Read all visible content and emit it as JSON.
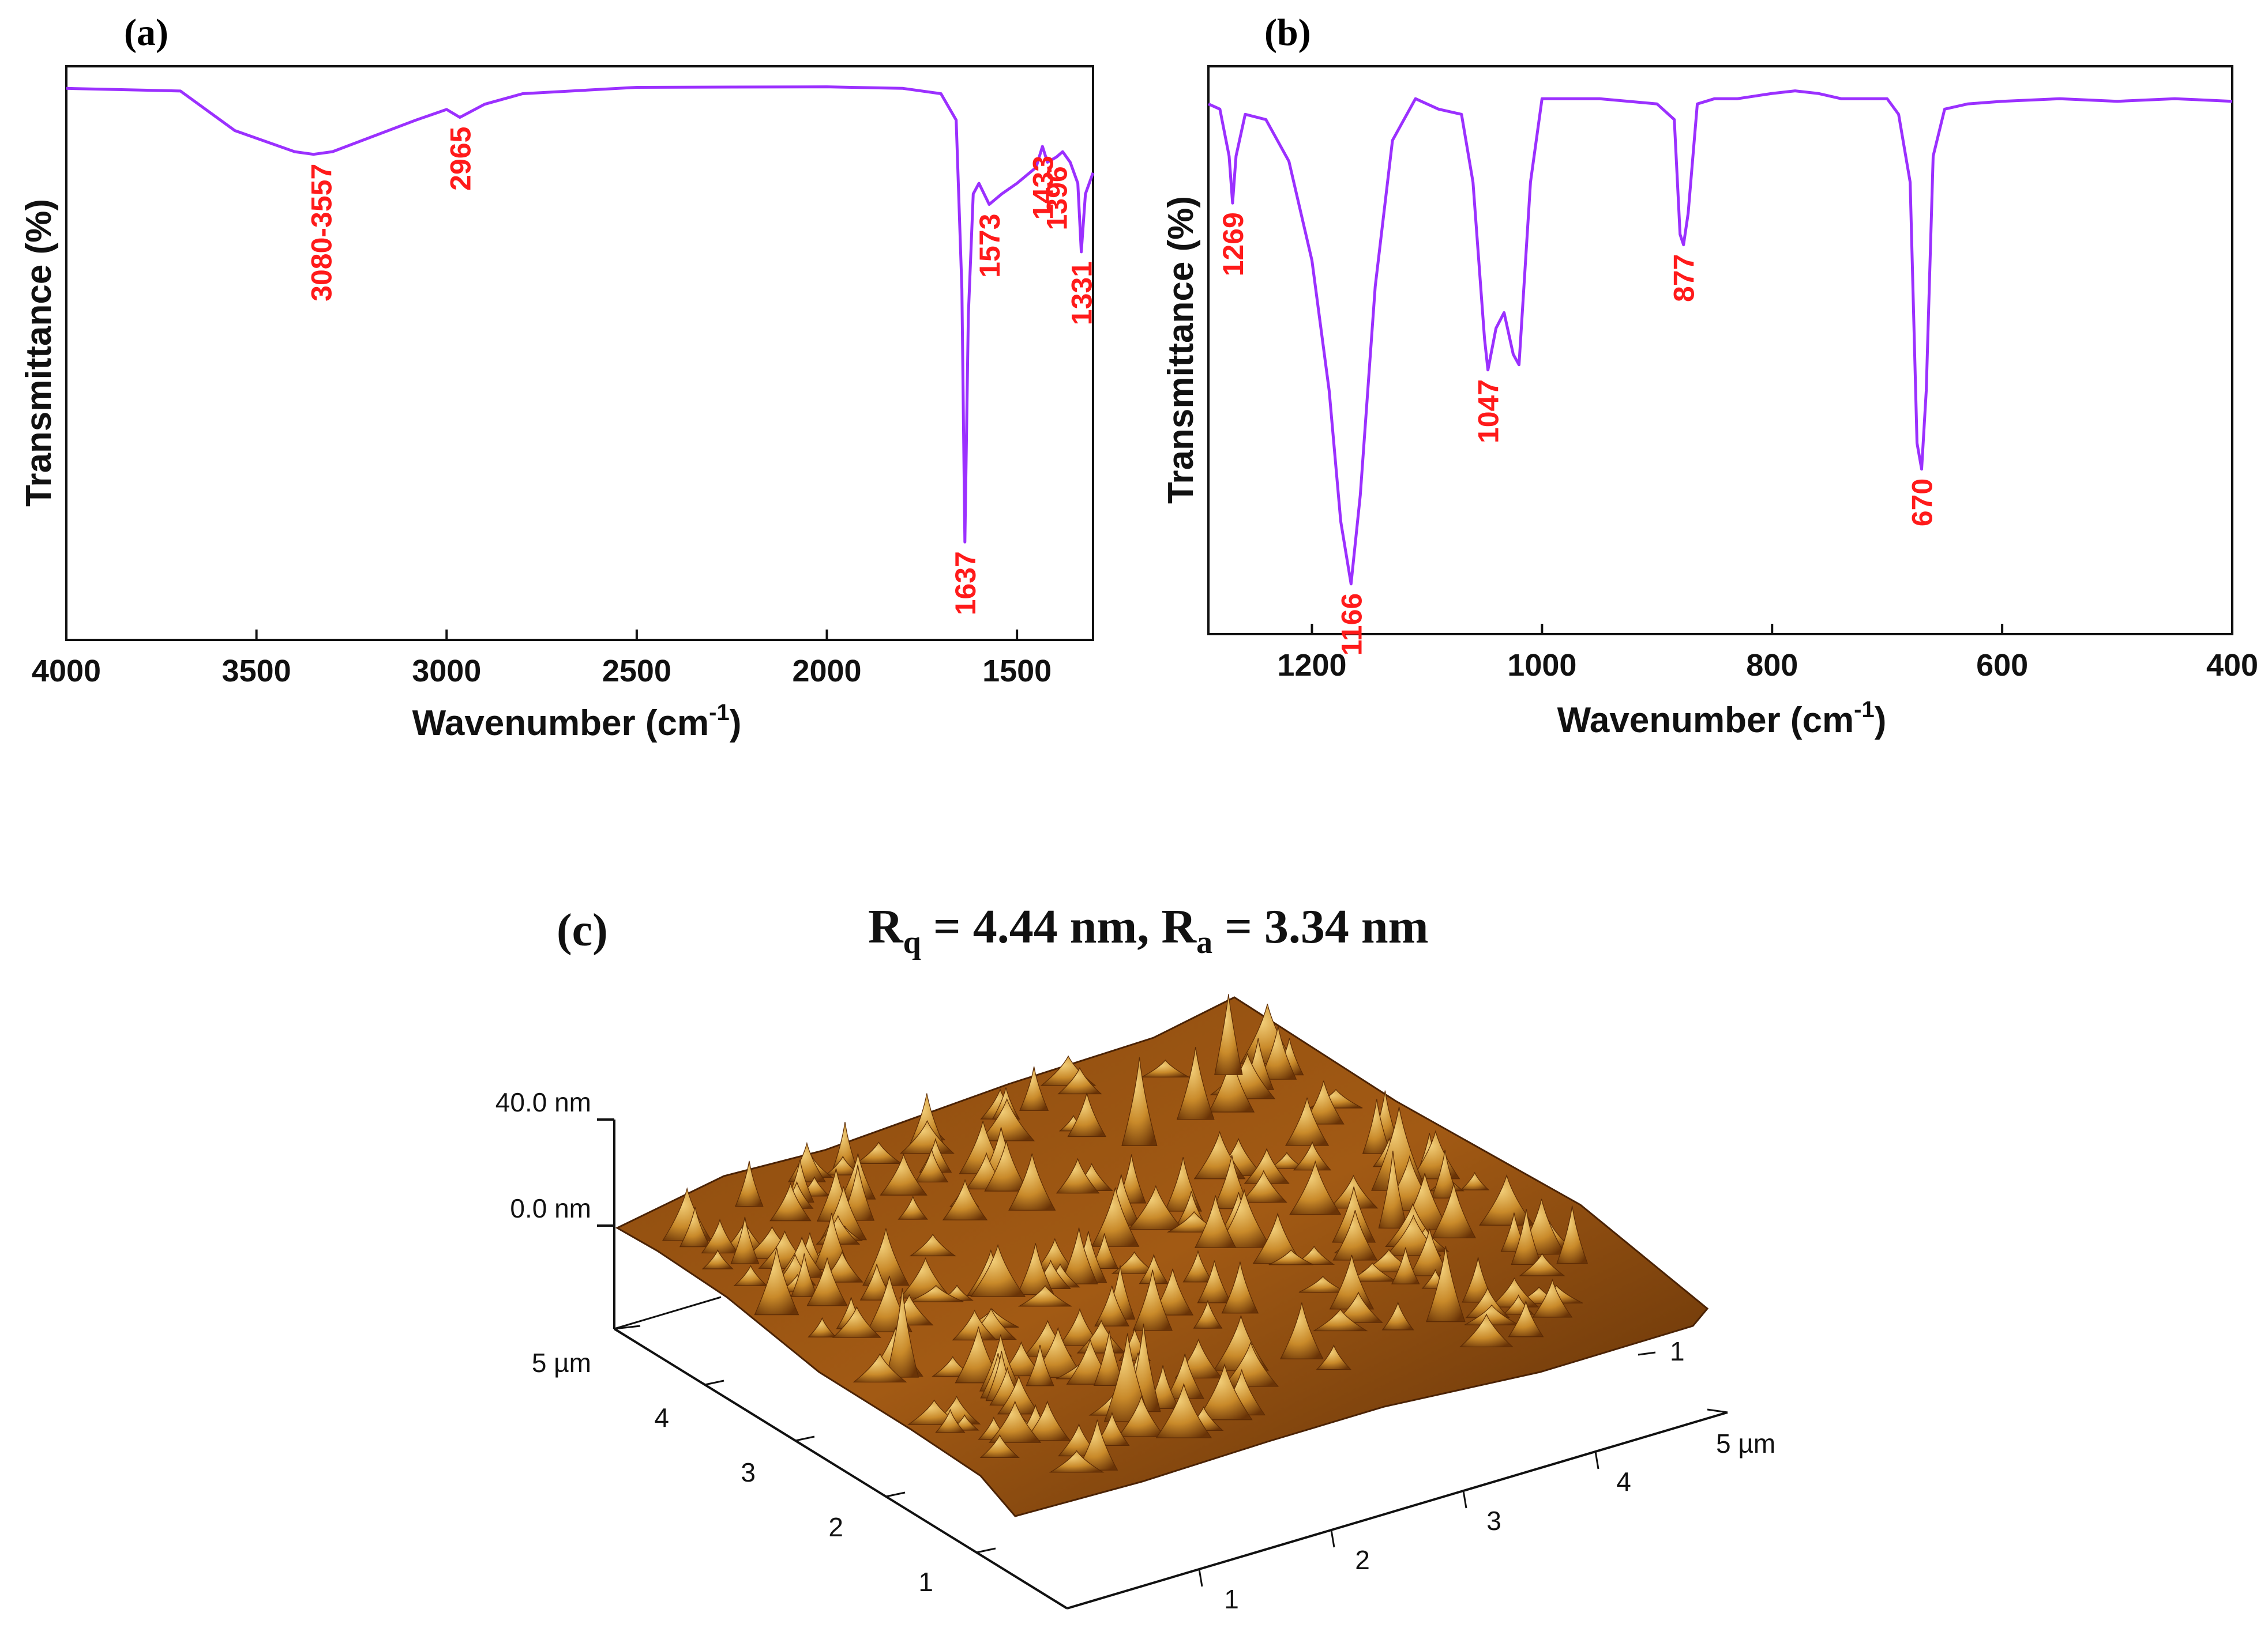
{
  "colors": {
    "spectrum": "#9b30ff",
    "peak_label": "#ff1a1a",
    "axis": "#111111",
    "surface_dark": "#5a2a05",
    "surface_mid": "#a45a12",
    "surface_light": "#e9c067"
  },
  "panel_a": {
    "tag": "(a)",
    "xlabel_main": "Wavenumber (cm",
    "xlabel_sup": "-1",
    "xlabel_close": ")",
    "ylabel": "Transmittance (%)",
    "x_ticks": [
      "4000",
      "3500",
      "3000",
      "2500",
      "2000",
      "1500"
    ],
    "peaks": [
      "3080-3557",
      "2965",
      "1637",
      "1573",
      "1433",
      "1396",
      "1331"
    ]
  },
  "panel_b": {
    "tag": "(b)",
    "xlabel_main": "Wavenumber (cm",
    "xlabel_sup": "-1",
    "xlabel_close": ")",
    "ylabel": "Transmittance (%)",
    "x_ticks": [
      "1200",
      "1000",
      "800",
      "600",
      "400"
    ],
    "peaks": [
      "1269",
      "1166",
      "1047",
      "877",
      "670"
    ]
  },
  "panel_c": {
    "tag": "(c)",
    "rq_sym": "R",
    "rq_sub": "q",
    "rq_value": " = 4.44 nm, ",
    "ra_sym": "R",
    "ra_sub": "a",
    "ra_value": " = 3.34 nm",
    "z_ticks": [
      "40.0 nm",
      "0.0 nm"
    ],
    "y_axis_ticks": [
      "5 µm",
      "4",
      "3",
      "2",
      "1"
    ],
    "x_axis_ticks": [
      "1",
      "2",
      "3",
      "4",
      "5 µm"
    ],
    "x_axis_end_tick": "1"
  },
  "chart_data": [
    {
      "type": "line",
      "title": "(a)",
      "xlabel": "Wavenumber (cm-1)",
      "ylabel": "Transmittance (%)",
      "xlim": [
        4000,
        1300
      ],
      "x": [
        4000,
        3700,
        3557,
        3400,
        3350,
        3300,
        3080,
        3000,
        2965,
        2900,
        2800,
        2500,
        2000,
        1800,
        1700,
        1660,
        1645,
        1637,
        1628,
        1615,
        1600,
        1573,
        1540,
        1500,
        1450,
        1433,
        1420,
        1396,
        1380,
        1360,
        1340,
        1331,
        1320,
        1300
      ],
      "values": [
        98,
        97.5,
        90,
        86,
        85.5,
        86,
        92,
        94,
        92.5,
        95,
        97,
        98.2,
        98.3,
        98,
        97,
        92,
        60,
        12,
        55,
        78,
        80,
        76,
        78,
        80,
        83,
        87,
        84,
        85,
        86,
        84,
        80,
        67,
        78,
        82
      ],
      "peak_labels": [
        {
          "label": "3080-3557",
          "x": 3330,
          "y": 85.5
        },
        {
          "label": "2965",
          "x": 2965,
          "y": 92.5
        },
        {
          "label": "1637",
          "x": 1637,
          "y": 12
        },
        {
          "label": "1573",
          "x": 1573,
          "y": 76
        },
        {
          "label": "1433",
          "x": 1433,
          "y": 87
        },
        {
          "label": "1396",
          "x": 1396,
          "y": 85
        },
        {
          "label": "1331",
          "x": 1331,
          "y": 67
        }
      ]
    },
    {
      "type": "line",
      "title": "(b)",
      "xlabel": "Wavenumber (cm-1)",
      "ylabel": "Transmittance (%)",
      "xlim": [
        1290,
        400
      ],
      "x": [
        1290,
        1280,
        1272,
        1269,
        1266,
        1258,
        1240,
        1220,
        1200,
        1185,
        1175,
        1166,
        1158,
        1145,
        1130,
        1110,
        1090,
        1070,
        1060,
        1050,
        1047,
        1040,
        1033,
        1025,
        1020,
        1010,
        1000,
        950,
        900,
        885,
        880,
        877,
        873,
        865,
        850,
        830,
        800,
        780,
        760,
        740,
        700,
        690,
        680,
        674,
        670,
        666,
        660,
        650,
        630,
        600,
        550,
        500,
        450,
        400
      ],
      "values": [
        95,
        94,
        85,
        76,
        85,
        93,
        92,
        84,
        65,
        40,
        15,
        3,
        20,
        60,
        88,
        96,
        94,
        93,
        80,
        50,
        44,
        52,
        55,
        47,
        45,
        80,
        96,
        96,
        95,
        92,
        70,
        68,
        74,
        95,
        96,
        96,
        97,
        97.5,
        97,
        96,
        96,
        93,
        80,
        30,
        25,
        40,
        85,
        94,
        95,
        95.5,
        96,
        95.5,
        96,
        95.5
      ],
      "peak_labels": [
        {
          "label": "1269",
          "x": 1269,
          "y": 76
        },
        {
          "label": "1166",
          "x": 1166,
          "y": 3
        },
        {
          "label": "1047",
          "x": 1047,
          "y": 44
        },
        {
          "label": "877",
          "x": 877,
          "y": 68
        },
        {
          "label": "670",
          "x": 670,
          "y": 25
        }
      ]
    },
    {
      "type": "surface",
      "title": "Rq = 4.44 nm, Ra = 3.34 nm",
      "xlabel": "µm",
      "ylabel": "µm",
      "zlabel": "nm",
      "x_range": [
        0,
        5
      ],
      "y_range": [
        0,
        5
      ],
      "z_ticks": [
        0.0,
        40.0
      ],
      "Rq_nm": 4.44,
      "Ra_nm": 3.34
    }
  ]
}
